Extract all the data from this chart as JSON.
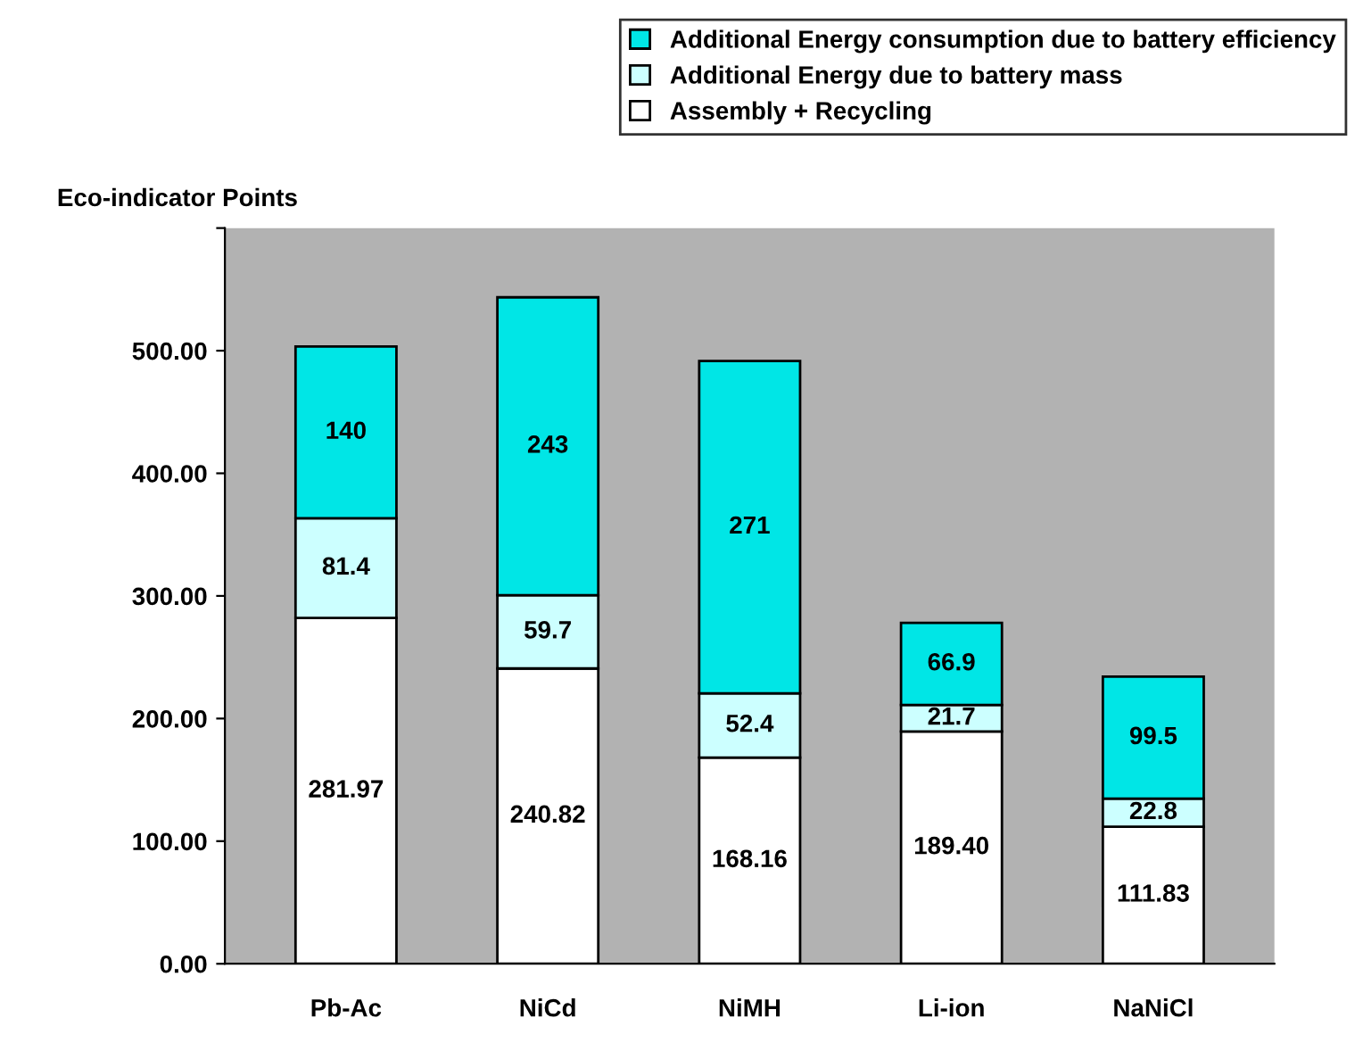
{
  "chart_data": {
    "type": "bar",
    "stacked": true,
    "ylabel": "Eco-indicator Points",
    "categories": [
      "Pb-Ac",
      "NiCd",
      "NiMH",
      "Li-ion",
      "NaNiCl"
    ],
    "series": [
      {
        "name": "Assembly + Recycling",
        "color": "#ffffff",
        "values": [
          281.97,
          240.82,
          168.16,
          189.4,
          111.83
        ],
        "value_labels": [
          "281.97",
          "240.82",
          "168.16",
          "189.40",
          "111.83"
        ]
      },
      {
        "name": "Additional Energy due to battery mass",
        "color": "#ccffff",
        "values": [
          81.4,
          59.7,
          52.4,
          21.7,
          22.8
        ],
        "value_labels": [
          "81.4",
          "59.7",
          "52.4",
          "21.7",
          "22.8"
        ]
      },
      {
        "name": "Additional Energy consumption due to battery efficiency",
        "color": "#00e6e6",
        "values": [
          140,
          243,
          271,
          66.9,
          99.5
        ],
        "value_labels": [
          "140",
          "243",
          "271",
          "66.9",
          "99.5"
        ]
      }
    ],
    "ylim": [
      0,
      600
    ],
    "yticks": [
      {
        "value": 0,
        "label": "0.00"
      },
      {
        "value": 100,
        "label": "100.00"
      },
      {
        "value": 200,
        "label": "200.00"
      },
      {
        "value": 300,
        "label": "300.00"
      },
      {
        "value": 400,
        "label": "400.00"
      },
      {
        "value": 500,
        "label": "500.00"
      },
      {
        "value": 600,
        "label": null
      }
    ],
    "grid": false,
    "legend": "top right"
  }
}
